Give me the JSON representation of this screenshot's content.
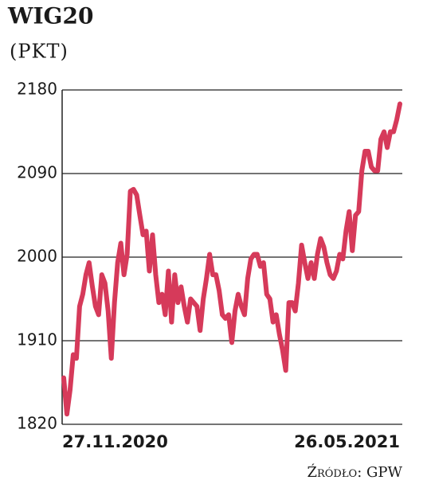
{
  "chart_data": {
    "type": "line",
    "title": "WIG20",
    "subtitle": "(PKT)",
    "source": "Źródło: GPW",
    "categories": [
      "27.11.2020",
      null,
      null,
      null,
      null,
      null,
      null,
      null,
      null,
      null,
      null,
      null,
      null,
      null,
      null,
      null,
      null,
      null,
      null,
      null,
      null,
      null,
      null,
      null,
      null,
      null,
      null,
      null,
      null,
      null,
      null,
      null,
      null,
      null,
      null,
      null,
      null,
      null,
      null,
      null,
      null,
      null,
      null,
      null,
      null,
      null,
      null,
      null,
      null,
      null,
      null,
      null,
      null,
      null,
      null,
      null,
      null,
      null,
      null,
      null,
      null,
      null,
      null,
      null,
      null,
      null,
      null,
      null,
      null,
      null,
      null,
      null,
      null,
      null,
      null,
      null,
      null,
      null,
      null,
      null,
      null,
      null,
      null,
      null,
      null,
      null,
      null,
      null,
      null,
      null,
      null,
      null,
      null,
      null,
      null,
      null,
      null,
      null,
      null,
      null,
      null,
      null,
      null,
      null,
      null,
      null,
      "26.05.2021"
    ],
    "values": [
      1870,
      1831,
      1857,
      1895,
      1891,
      1947,
      1960,
      1981,
      1994,
      1969,
      1947,
      1938,
      1981,
      1972,
      1942,
      1891,
      1951,
      1994,
      2015,
      1981,
      2003,
      2071,
      2073,
      2067,
      2045,
      2024,
      2028,
      1985,
      2024,
      1981,
      1951,
      1960,
      1938,
      1985,
      1930,
      1981,
      1951,
      1968,
      1947,
      1930,
      1955,
      1951,
      1947,
      1921,
      1955,
      1977,
      2003,
      1981,
      1981,
      1964,
      1938,
      1934,
      1938,
      1908,
      1942,
      1960,
      1947,
      1938,
      1977,
      1998,
      2003,
      2003,
      1990,
      1994,
      1960,
      1955,
      1930,
      1938,
      1917,
      1900,
      1878,
      1951,
      1951,
      1942,
      1972,
      2013,
      1994,
      1977,
      1994,
      1977,
      2003,
      2020,
      2011,
      1994,
      1981,
      1977,
      1985,
      2003,
      1998,
      2028,
      2049,
      2007,
      2045,
      2049,
      2093,
      2114,
      2114,
      2097,
      2093,
      2093,
      2127,
      2135,
      2118,
      2135,
      2135,
      2148,
      2165
    ],
    "color": "#d63a5a",
    "ylim": [
      1820,
      2180
    ],
    "yticks": [
      1820,
      1910,
      2000,
      2090,
      2180
    ],
    "grid": true
  }
}
